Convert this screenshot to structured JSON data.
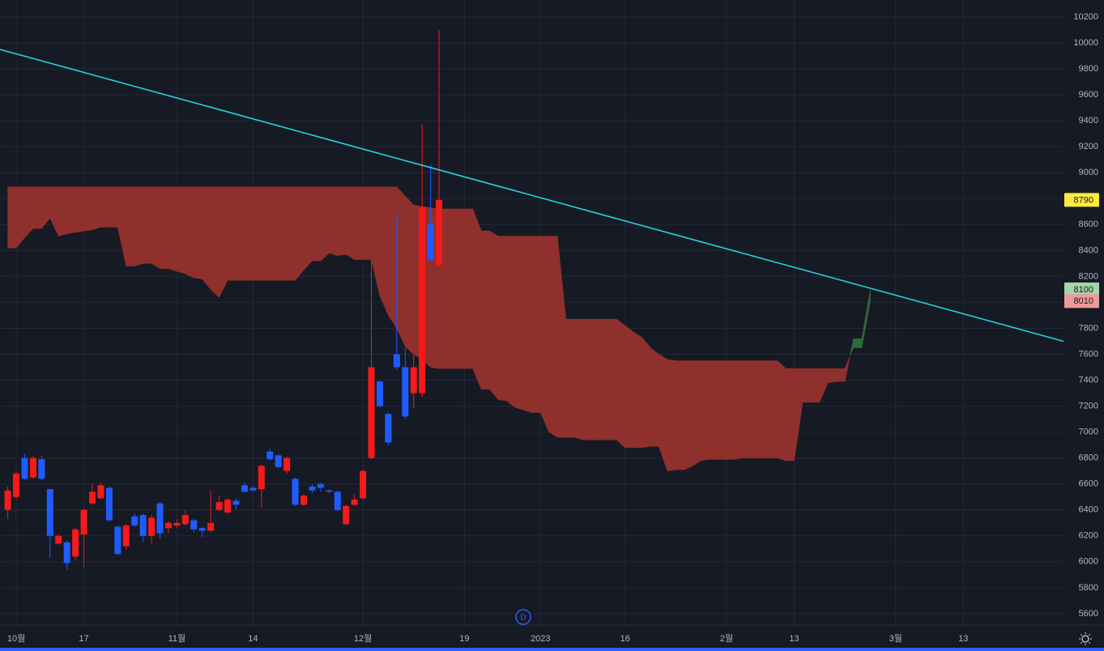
{
  "chart_data": {
    "type": "candlestick",
    "categories": [
      null,
      "10월",
      null,
      null,
      null,
      null,
      null,
      null,
      null,
      "17",
      null,
      null,
      null,
      null,
      null,
      null,
      null,
      null,
      null,
      null,
      "11월",
      null,
      null,
      null,
      null,
      null,
      null,
      null,
      null,
      "14",
      null,
      null,
      null,
      null,
      null,
      null,
      null,
      null,
      null,
      null,
      null,
      null,
      "12월",
      null,
      null,
      null,
      null,
      null,
      null,
      null,
      null,
      null,
      null,
      null,
      "19",
      null,
      null,
      null,
      null,
      null,
      null,
      null,
      null,
      "2023",
      null,
      null,
      null,
      null,
      null,
      null,
      null,
      null,
      null,
      "16",
      null,
      null,
      null,
      null,
      null,
      null,
      null,
      null,
      null,
      null,
      null,
      "2월",
      null,
      null,
      null,
      null,
      null,
      null,
      null,
      "13",
      null,
      null,
      null,
      null,
      null,
      null,
      null,
      null,
      null,
      null,
      null,
      "3월",
      null,
      null,
      null,
      null,
      null,
      null,
      null,
      "13",
      null,
      null,
      null,
      null,
      null,
      null,
      null,
      null,
      null,
      null,
      null,
      null
    ],
    "ylim": [
      5512,
      10331
    ],
    "yticks": [
      5600,
      5800,
      6000,
      6200,
      6400,
      6600,
      6800,
      7000,
      7200,
      7400,
      7600,
      7800,
      8000,
      8200,
      8400,
      8600,
      8800,
      9000,
      9200,
      9400,
      9600,
      9800,
      10000,
      10200
    ],
    "grid": true,
    "candles": {
      "up_color": "#f71a1a",
      "down_color": "#1f5cff",
      "open": [
        6400,
        6500,
        6800,
        6650,
        6790,
        6560,
        6140,
        6150,
        6040,
        6210,
        6450,
        6490,
        6570,
        6270,
        6120,
        6350,
        6360,
        6200,
        6450,
        6260,
        6280,
        6290,
        6320,
        6260,
        6240,
        6400,
        6380,
        6470,
        6590,
        6570,
        6560,
        6850,
        6820,
        6700,
        6640,
        6440,
        6580,
        6600,
        6550,
        6540,
        6290,
        6440,
        6490,
        6800,
        7390,
        7140,
        7600,
        7500,
        7300,
        7300,
        8600,
        8290
      ],
      "high": [
        6580,
        6700,
        6830,
        6820,
        6820,
        6560,
        6210,
        6160,
        6260,
        6410,
        6600,
        6610,
        6580,
        6280,
        6290,
        6370,
        6370,
        6360,
        6460,
        6310,
        6330,
        6400,
        6330,
        6270,
        6550,
        6510,
        6490,
        6490,
        6610,
        6580,
        6750,
        6870,
        6830,
        6810,
        6650,
        6520,
        6600,
        6610,
        6560,
        6550,
        6440,
        6520,
        6710,
        8320,
        7400,
        7150,
        8680,
        7650,
        7600,
        9370,
        9060,
        10100
      ],
      "low": [
        6330,
        6480,
        6630,
        6640,
        6630,
        6030,
        6130,
        5940,
        6010,
        5960,
        6440,
        6480,
        6310,
        6050,
        6090,
        6270,
        6150,
        6140,
        6180,
        6220,
        6260,
        6280,
        6230,
        6190,
        6230,
        6390,
        6370,
        6400,
        6530,
        6540,
        6420,
        6780,
        6720,
        6680,
        6430,
        6430,
        6530,
        6540,
        6530,
        6390,
        6280,
        6430,
        6480,
        6790,
        7190,
        6900,
        7480,
        7100,
        7180,
        7270,
        8320,
        8280
      ],
      "close": [
        6550,
        6680,
        6640,
        6800,
        6640,
        6200,
        6200,
        5990,
        6250,
        6400,
        6540,
        6590,
        6320,
        6060,
        6280,
        6280,
        6200,
        6340,
        6220,
        6300,
        6300,
        6360,
        6250,
        6240,
        6300,
        6460,
        6480,
        6440,
        6540,
        6550,
        6740,
        6790,
        6730,
        6800,
        6440,
        6510,
        6550,
        6570,
        6540,
        6400,
        6430,
        6480,
        6700,
        7500,
        7200,
        6920,
        7500,
        7120,
        7500,
        8730,
        8330,
        8790
      ]
    },
    "cloud": {
      "bull_color": "#2f6b36",
      "bear_color": "#8f302d",
      "span_a": [
        8420,
        8420,
        8500,
        8570,
        8570,
        8650,
        8510,
        8530,
        8540,
        8550,
        8560,
        8580,
        8580,
        8580,
        8280,
        8280,
        8300,
        8300,
        8260,
        8260,
        8240,
        8220,
        8190,
        8180,
        8100,
        8040,
        8170,
        8170,
        8170,
        8170,
        8170,
        8170,
        8170,
        8170,
        8170,
        8250,
        8320,
        8320,
        8380,
        8360,
        8370,
        8330,
        8330,
        8330,
        8050,
        7900,
        7800,
        7660,
        7600,
        7560,
        7500,
        7490,
        7490,
        7490,
        7490,
        7490,
        7330,
        7330,
        7250,
        7240,
        7190,
        7170,
        7150,
        7150,
        7000,
        6960,
        6960,
        6960,
        6940,
        6940,
        6940,
        6940,
        6940,
        6880,
        6880,
        6880,
        6890,
        6890,
        6700,
        6710,
        6710,
        6740,
        6780,
        6790,
        6790,
        6790,
        6790,
        6800,
        6800,
        6800,
        6800,
        6800,
        6780,
        6780,
        7230,
        7230,
        7230,
        7380,
        7390,
        7390,
        7720,
        7720,
        8100
      ],
      "span_b": [
        8890,
        8890,
        8890,
        8890,
        8890,
        8890,
        8890,
        8890,
        8890,
        8890,
        8890,
        8890,
        8890,
        8890,
        8890,
        8890,
        8890,
        8890,
        8890,
        8890,
        8890,
        8890,
        8890,
        8890,
        8890,
        8890,
        8890,
        8890,
        8890,
        8890,
        8890,
        8890,
        8890,
        8890,
        8890,
        8890,
        8890,
        8890,
        8890,
        8890,
        8890,
        8890,
        8890,
        8890,
        8890,
        8890,
        8890,
        8820,
        8750,
        8740,
        8730,
        8720,
        8720,
        8720,
        8720,
        8720,
        8550,
        8550,
        8510,
        8510,
        8510,
        8510,
        8510,
        8510,
        8510,
        8510,
        7870,
        7870,
        7870,
        7870,
        7870,
        7870,
        7870,
        7820,
        7770,
        7730,
        7650,
        7600,
        7560,
        7550,
        7550,
        7550,
        7550,
        7550,
        7550,
        7550,
        7550,
        7550,
        7550,
        7550,
        7550,
        7550,
        7490,
        7490,
        7490,
        7490,
        7490,
        7490,
        7490,
        7490,
        7650,
        7650,
        8010
      ]
    },
    "trend_line": {
      "color": "#26d0e0",
      "values": [
        9950,
        7700
      ]
    },
    "price_labels": [
      {
        "value": 8790,
        "color": "#ffeb3b"
      },
      {
        "value": 8100,
        "color": "#a5d6a7"
      },
      {
        "value": 8010,
        "color": "#ef9a9a"
      }
    ],
    "event_marker": "D"
  }
}
